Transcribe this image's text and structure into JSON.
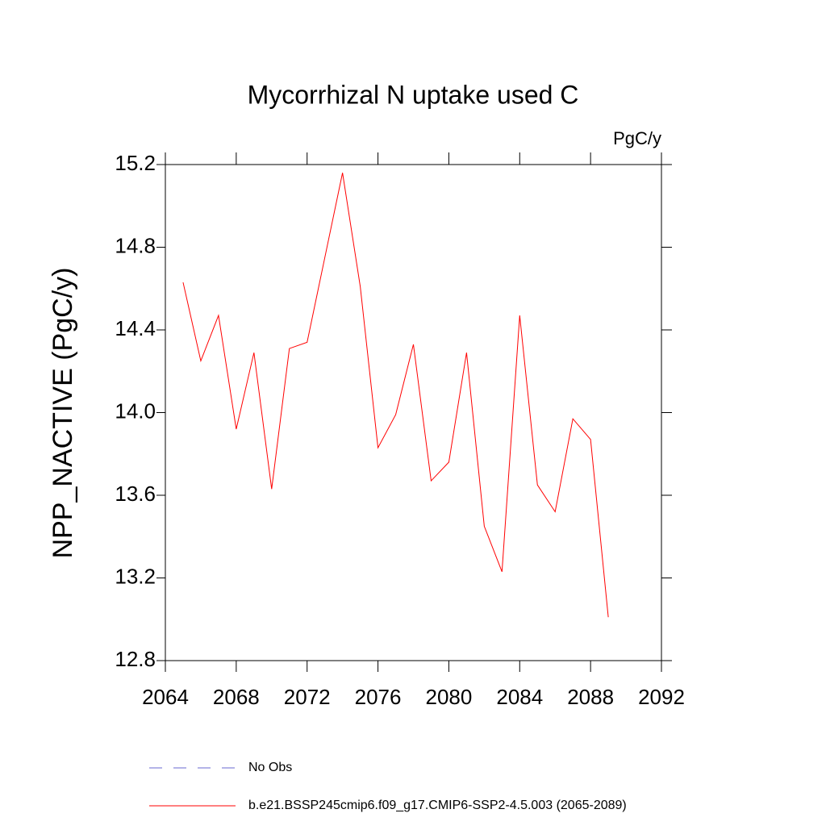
{
  "chart_data": {
    "type": "line",
    "title": "Mycorrhizal N uptake used C",
    "units": "PgC/y",
    "y_label": "NPP_NACTIVE  (PgC/y)",
    "x": [
      2065,
      2066,
      2067,
      2068,
      2069,
      2070,
      2071,
      2072,
      2073,
      2074,
      2075,
      2076,
      2077,
      2078,
      2079,
      2080,
      2081,
      2082,
      2083,
      2084,
      2085,
      2086,
      2087,
      2088,
      2089
    ],
    "series": [
      {
        "name": "b.e21.BSSP245cmip6.f09_g17.CMIP6-SSP2-4.5.003 (2065-2089)",
        "color": "#ff0000",
        "values": [
          14.63,
          14.25,
          14.47,
          13.92,
          14.29,
          13.63,
          14.31,
          14.34,
          14.75,
          15.16,
          14.61,
          13.83,
          13.99,
          14.33,
          13.67,
          13.76,
          14.29,
          13.45,
          13.23,
          14.47,
          13.65,
          13.52,
          13.97,
          13.87,
          13.01
        ]
      }
    ],
    "extra_legend": [
      {
        "name": "No Obs",
        "color": "#6a6ad0",
        "dash": "dashed"
      }
    ],
    "xlim": [
      2064,
      2092
    ],
    "xticks": [
      2064,
      2068,
      2072,
      2076,
      2080,
      2084,
      2088,
      2092
    ],
    "ylim": [
      12.8,
      15.2
    ],
    "yticks": [
      12.8,
      13.2,
      13.6,
      {
        "value": 14,
        "label": "14.0"
      },
      14.4,
      14.8,
      15.2
    ],
    "grid": false
  }
}
